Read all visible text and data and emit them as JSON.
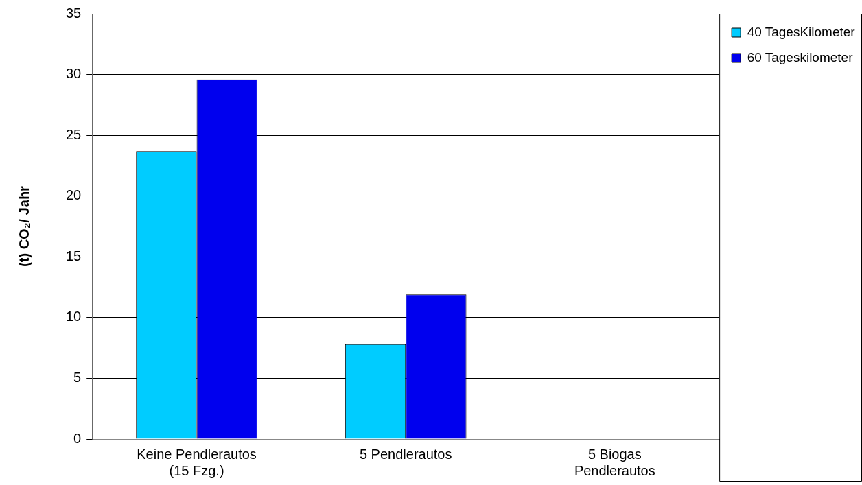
{
  "chart_data": {
    "type": "bar",
    "ylabel": "(t) CO₂/ Jahr",
    "categories": [
      "Keine Pendlerautos\n(15 Fzg.)",
      "5 Pendlerautos",
      "5 Biogas\nPendlerautos"
    ],
    "series": [
      {
        "name": "40 TagesKilometer",
        "color": "#00ccff",
        "values": [
          23.7,
          7.8,
          0
        ]
      },
      {
        "name": "60 Tageskilometer",
        "color": "#0000ee",
        "values": [
          29.6,
          11.9,
          0
        ]
      }
    ],
    "ylim": [
      0,
      35
    ],
    "yticks": [
      0,
      5,
      10,
      15,
      20,
      25,
      30,
      35
    ],
    "grid": "y",
    "legend": "top right"
  }
}
